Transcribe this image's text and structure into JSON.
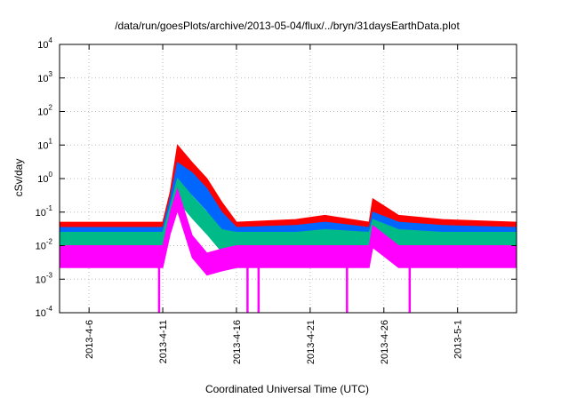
{
  "chart_data": {
    "type": "line",
    "title": "/data/run/goesPlots/archive/2013-05-04/flux/../bryn/31daysEarthData.plot",
    "xlabel": "Coordinated Universal Time (UTC)",
    "ylabel": "cSv/day",
    "yscale": "log",
    "ylim": [
      0.0001,
      10000
    ],
    "xlim": [
      "2013-04-04",
      "2013-05-05"
    ],
    "grid": true,
    "y_ticks": [
      {
        "base": "10",
        "exp": "-4",
        "value": 0.0001
      },
      {
        "base": "10",
        "exp": "-3",
        "value": 0.001
      },
      {
        "base": "10",
        "exp": "-2",
        "value": 0.01
      },
      {
        "base": "10",
        "exp": "-1",
        "value": 0.1
      },
      {
        "base": "10",
        "exp": "0",
        "value": 1
      },
      {
        "base": "10",
        "exp": "1",
        "value": 10
      },
      {
        "base": "10",
        "exp": "2",
        "value": 100
      },
      {
        "base": "10",
        "exp": "3",
        "value": 1000
      },
      {
        "base": "10",
        "exp": "4",
        "value": 10000
      }
    ],
    "x_ticks": [
      {
        "label": "2013-4-6",
        "date": "2013-04-06"
      },
      {
        "label": "2013-4-11",
        "date": "2013-04-11"
      },
      {
        "label": "2013-4-16",
        "date": "2013-04-16"
      },
      {
        "label": "2013-4-21",
        "date": "2013-04-21"
      },
      {
        "label": "2013-4-26",
        "date": "2013-04-26"
      },
      {
        "label": "2013-5-1",
        "date": "2013-05-01"
      }
    ],
    "series": [
      {
        "color": "#ff0000",
        "x": [
          "2013-04-04",
          "2013-04-11",
          "2013-04-11 12:00",
          "2013-04-12",
          "2013-04-13",
          "2013-04-14",
          "2013-04-15",
          "2013-04-16",
          "2013-04-20",
          "2013-04-22",
          "2013-04-25",
          "2013-04-25 06:00",
          "2013-04-27",
          "2013-04-30",
          "2013-05-05"
        ],
        "y": [
          0.05,
          0.05,
          0.4,
          10,
          3,
          1,
          0.2,
          0.05,
          0.06,
          0.08,
          0.05,
          0.25,
          0.08,
          0.06,
          0.05
        ]
      },
      {
        "color": "#0066ff",
        "x": [
          "2013-04-04",
          "2013-04-11",
          "2013-04-11 12:00",
          "2013-04-12",
          "2013-04-13",
          "2013-04-14",
          "2013-04-15",
          "2013-04-16",
          "2013-04-20",
          "2013-04-22",
          "2013-04-25",
          "2013-04-25 06:00",
          "2013-04-27",
          "2013-04-30",
          "2013-05-05"
        ],
        "y": [
          0.035,
          0.035,
          0.25,
          3,
          1.5,
          0.5,
          0.1,
          0.035,
          0.04,
          0.05,
          0.035,
          0.1,
          0.05,
          0.04,
          0.035
        ]
      },
      {
        "color": "#00bb88",
        "x": [
          "2013-04-04",
          "2013-04-11",
          "2013-04-11 12:00",
          "2013-04-12",
          "2013-04-13",
          "2013-04-14",
          "2013-04-15",
          "2013-04-16",
          "2013-04-20",
          "2013-04-22",
          "2013-04-25",
          "2013-04-25 06:00",
          "2013-04-27",
          "2013-04-30",
          "2013-05-05"
        ],
        "y": [
          0.025,
          0.025,
          0.15,
          1,
          0.3,
          0.1,
          0.03,
          0.025,
          0.025,
          0.03,
          0.025,
          0.06,
          0.03,
          0.025,
          0.025
        ]
      },
      {
        "color": "#ff00ff",
        "x": [
          "2013-04-04",
          "2013-04-11",
          "2013-04-11 12:00",
          "2013-04-12",
          "2013-04-13",
          "2013-04-14",
          "2013-04-15",
          "2013-04-16",
          "2013-04-20",
          "2013-04-22",
          "2013-04-25",
          "2013-04-25 06:00",
          "2013-04-27",
          "2013-04-30",
          "2013-05-05"
        ],
        "y": [
          0.01,
          0.01,
          0.1,
          0.5,
          0.02,
          0.006,
          0.008,
          0.01,
          0.01,
          0.01,
          0.01,
          0.04,
          0.01,
          0.01,
          0.01
        ]
      }
    ],
    "dips": [
      {
        "date": "2013-04-10 18:00",
        "y": 0.0001
      },
      {
        "date": "2013-04-16 18:00",
        "y": 0.0001
      },
      {
        "date": "2013-04-17 12:00",
        "y": 0.0001
      },
      {
        "date": "2013-04-23 12:00",
        "y": 0.0001
      },
      {
        "date": "2013-04-27 18:00",
        "y": 0.0001
      }
    ]
  }
}
